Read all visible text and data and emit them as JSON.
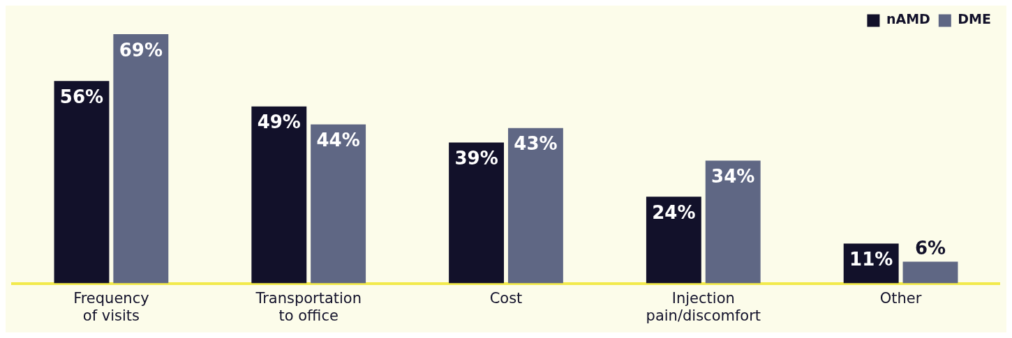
{
  "chart_data": {
    "type": "bar",
    "categories": [
      "Frequency of visits",
      "Transportation to office",
      "Cost",
      "Injection pain/discomfort",
      "Other"
    ],
    "series": [
      {
        "name": "nAMD",
        "color": "#12112a",
        "values": [
          56,
          49,
          39,
          24,
          11
        ],
        "value_labels": [
          "56%",
          "49%",
          "39%",
          "24%",
          "11%"
        ]
      },
      {
        "name": "DME",
        "color": "#5f6784",
        "values": [
          69,
          44,
          43,
          34,
          6
        ],
        "value_labels": [
          "69%",
          "44%",
          "43%",
          "34%",
          "6%"
        ]
      }
    ],
    "legend": "top right",
    "grid": false
  }
}
